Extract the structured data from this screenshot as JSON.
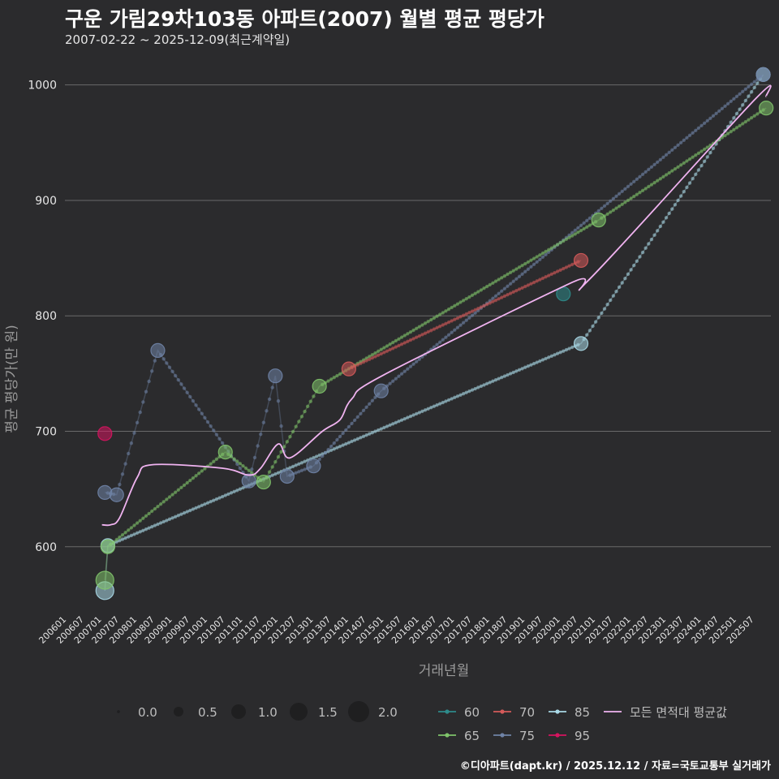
{
  "header": {
    "title": "구운 가림29차103동 아파트(2007) 월별 평균 평당가",
    "subtitle": "2007-02-22 ~ 2025-12-09(최근계약일)"
  },
  "footer": {
    "credit": "©디아파트(dapt.kr) / 2025.12.12 / 자료=국토교통부 실거래가"
  },
  "colors": {
    "background": "#2b2b2d",
    "grid": "#6a6a6a",
    "s60": "#2e8b8b",
    "s65": "#7fc36a",
    "s70": "#d45a5a",
    "s75": "#6f83a6",
    "s85": "#a9d8e6",
    "s95": "#d6145f",
    "avg": "#f0b3f0"
  },
  "chart_data": {
    "type": "line",
    "title": "구운 가림29차103동 아파트(2007) 월별 평균 평당가",
    "xlabel": "거래년월",
    "ylabel": "평균 평당가(만 원)",
    "ylim": [
      545,
      1030
    ],
    "yticks": [
      600,
      700,
      800,
      900,
      1000
    ],
    "xlim": [
      "2006-01",
      "2025-12"
    ],
    "xticks": [
      "200601",
      "200607",
      "200701",
      "200707",
      "200801",
      "200807",
      "200901",
      "200907",
      "201001",
      "201007",
      "201101",
      "201107",
      "201201",
      "201207",
      "201301",
      "201307",
      "201401",
      "201407",
      "201501",
      "201507",
      "201601",
      "201607",
      "201701",
      "201707",
      "201801",
      "201807",
      "201901",
      "201907",
      "202001",
      "202007",
      "202101",
      "202107",
      "202201",
      "202207",
      "202301",
      "202307",
      "202401",
      "202407",
      "202501",
      "202507"
    ],
    "size_legend": {
      "labels": [
        "0.0",
        "0.5",
        "1.0",
        "1.5",
        "2.0"
      ]
    },
    "series_legend": [
      "60",
      "65",
      "70",
      "75",
      "85",
      "95",
      "모든 면적대 평균값"
    ],
    "series": [
      {
        "name": "60",
        "color_key": "s60",
        "points": [
          {
            "x": "2020-02",
            "y": 819
          }
        ]
      },
      {
        "name": "65",
        "color_key": "s65",
        "points": [
          {
            "x": "2007-02",
            "y": 571
          },
          {
            "x": "2007-03",
            "y": 600
          },
          {
            "x": "2010-07",
            "y": 682
          },
          {
            "x": "2011-08",
            "y": 656
          },
          {
            "x": "2013-03",
            "y": 739
          },
          {
            "x": "2021-02",
            "y": 883
          },
          {
            "x": "2025-11",
            "y": 980
          }
        ]
      },
      {
        "name": "70",
        "color_key": "s70",
        "points": [
          {
            "x": "2014-01",
            "y": 754
          },
          {
            "x": "2020-08",
            "y": 848
          }
        ]
      },
      {
        "name": "75",
        "color_key": "s75",
        "points": [
          {
            "x": "2007-02",
            "y": 647
          },
          {
            "x": "2007-06",
            "y": 645
          },
          {
            "x": "2008-08",
            "y": 770
          },
          {
            "x": "2011-03",
            "y": 657
          },
          {
            "x": "2011-12",
            "y": 748
          },
          {
            "x": "2012-04",
            "y": 661
          },
          {
            "x": "2013-01",
            "y": 670
          },
          {
            "x": "2014-12",
            "y": 735
          },
          {
            "x": "2025-10",
            "y": 1009
          }
        ]
      },
      {
        "name": "85",
        "color_key": "s85",
        "points": [
          {
            "x": "2007-02",
            "y": 562
          },
          {
            "x": "2007-03",
            "y": 601
          },
          {
            "x": "2020-08",
            "y": 776
          },
          {
            "x": "2025-10",
            "y": 1009
          }
        ]
      },
      {
        "name": "95",
        "color_key": "s95",
        "points": [
          {
            "x": "2007-02",
            "y": 698
          }
        ]
      },
      {
        "name": "모든 면적대 평균값",
        "color_key": "avg",
        "smooth": true,
        "points": [
          {
            "x": "2007-01",
            "y": 619
          },
          {
            "x": "2007-04",
            "y": 619
          },
          {
            "x": "2007-07",
            "y": 625
          },
          {
            "x": "2008-01",
            "y": 660
          },
          {
            "x": "2008-06",
            "y": 671
          },
          {
            "x": "2010-06",
            "y": 668
          },
          {
            "x": "2011-03",
            "y": 662
          },
          {
            "x": "2011-07",
            "y": 668
          },
          {
            "x": "2012-01",
            "y": 689
          },
          {
            "x": "2012-05",
            "y": 677
          },
          {
            "x": "2013-04",
            "y": 700
          },
          {
            "x": "2013-10",
            "y": 710
          },
          {
            "x": "2014-02",
            "y": 728
          },
          {
            "x": "2015-01",
            "y": 749
          },
          {
            "x": "2020-05",
            "y": 829
          },
          {
            "x": "2020-11",
            "y": 832
          },
          {
            "x": "2025-07",
            "y": 987
          },
          {
            "x": "2025-11",
            "y": 990
          }
        ]
      }
    ]
  }
}
